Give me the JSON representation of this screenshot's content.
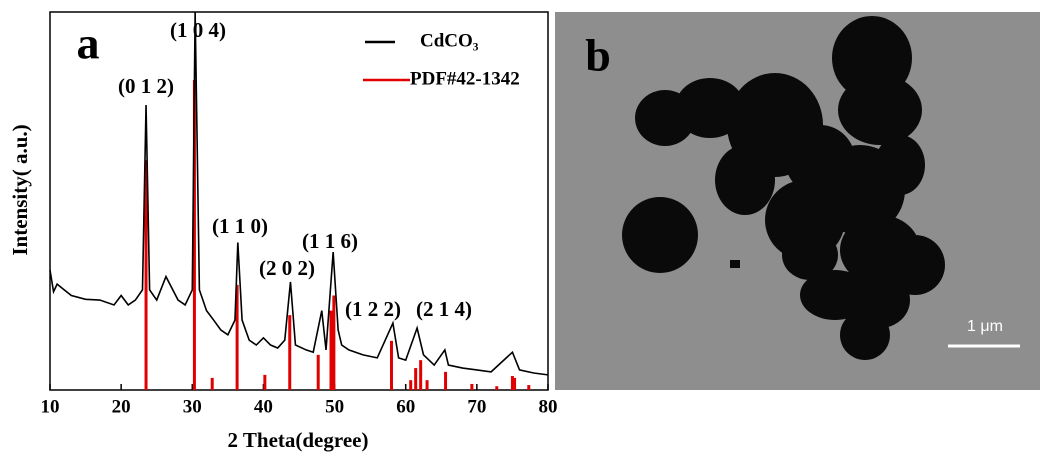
{
  "chart_data": {
    "type": "line",
    "xlabel": "2 Theta(degree)",
    "ylabel": "Intensity( a.u.)",
    "xlim": [
      10,
      80
    ],
    "xticks": [
      10,
      20,
      30,
      40,
      50,
      60,
      70,
      80
    ],
    "ylim": [
      0,
      100
    ],
    "annotations": [
      "(0 1 2)",
      "(1 0 4)",
      "(1 1 0)",
      "(2 0 2)",
      "(1 1 6)",
      "(1 2 2)",
      "(2 1 4)"
    ],
    "series": [
      {
        "name": "CdCO₃",
        "color": "#000000",
        "type": "line",
        "x": [
          10,
          10.5,
          11,
          12,
          13,
          15,
          17,
          19,
          20,
          21,
          22,
          23,
          23.5,
          24,
          25,
          26.3,
          28,
          29,
          30,
          30.4,
          31,
          32,
          33,
          34,
          35,
          36,
          36.4,
          37,
          38,
          39,
          40,
          41,
          42,
          43,
          43.8,
          44.5,
          46,
          47,
          48.2,
          48.8,
          49.8,
          50.5,
          51,
          52,
          54,
          56,
          58.2,
          59,
          60,
          61.6,
          62.5,
          64,
          65.5,
          66,
          68,
          70,
          72,
          75,
          76,
          78,
          80
        ],
        "values": [
          31.7,
          26,
          28,
          26.5,
          25,
          24,
          23.8,
          22.5,
          25,
          22.5,
          23.8,
          26.5,
          75.4,
          26.5,
          23.8,
          30,
          23.8,
          22.5,
          26.5,
          100,
          26.5,
          21,
          18.5,
          15.9,
          14.6,
          18.5,
          39,
          18.5,
          13.2,
          11.9,
          13.8,
          11.9,
          11.1,
          13.2,
          28.6,
          11.9,
          10.6,
          10,
          21,
          10.6,
          36.5,
          15.9,
          11.9,
          10.6,
          9.3,
          8.5,
          17.7,
          8.5,
          7.9,
          16.4,
          9.3,
          6.6,
          10.6,
          6.6,
          5.8,
          5.3,
          4.8,
          10,
          5.3,
          4.5,
          4
        ]
      },
      {
        "name": "PDF#42-1342",
        "color": "#e00000",
        "type": "stick",
        "x": [
          23.5,
          30.3,
          32.8,
          36.3,
          40.2,
          43.7,
          47.7,
          49.5,
          49.9,
          58,
          60.7,
          61.4,
          62.1,
          63,
          65.6,
          69.3,
          72.8,
          75,
          75.3,
          77.3
        ],
        "values": [
          60.8,
          82,
          3.2,
          27.8,
          4,
          19.8,
          9.3,
          21,
          25,
          13,
          2.6,
          5.8,
          7.9,
          2.6,
          4.8,
          1.6,
          1,
          3.7,
          3.2,
          1.3
        ]
      }
    ]
  },
  "panel_labels": [
    "a",
    "b"
  ],
  "image": {
    "scale_bar": "1 μm"
  }
}
